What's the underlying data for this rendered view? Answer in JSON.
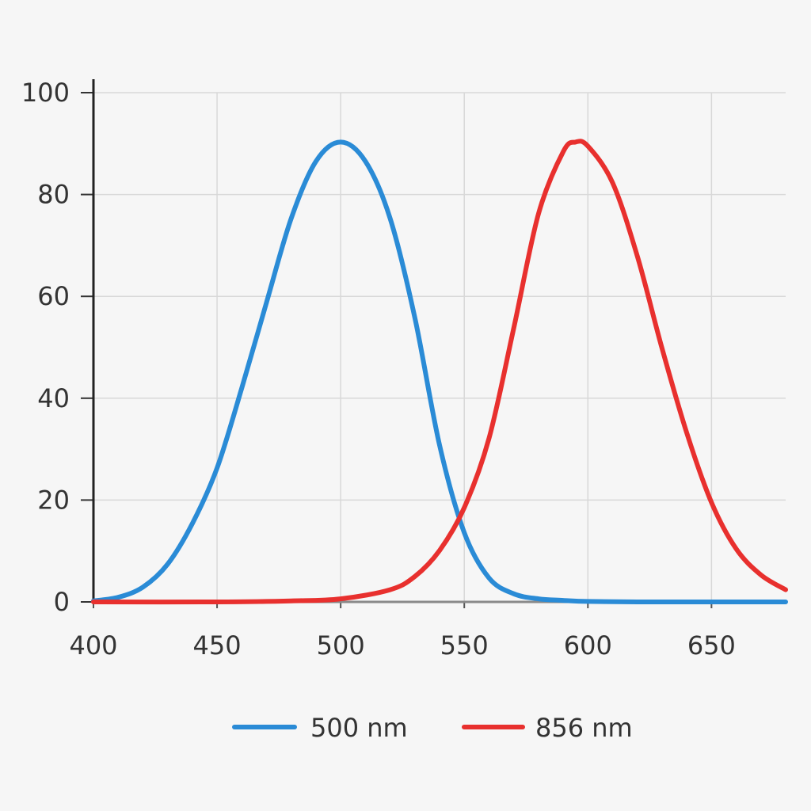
{
  "chart_data": {
    "type": "line",
    "title": "",
    "xlabel": "",
    "ylabel": "",
    "xlim": [
      400,
      680
    ],
    "ylim": [
      0,
      100
    ],
    "x_ticks": [
      400,
      450,
      500,
      550,
      600,
      650
    ],
    "y_ticks": [
      0,
      20,
      40,
      60,
      80,
      100
    ],
    "grid": true,
    "legend_position": "bottom",
    "series": [
      {
        "name": "500 nm",
        "color": "#2a8bd6",
        "x": [
          400,
          410,
          420,
          430,
          440,
          450,
          460,
          470,
          480,
          490,
          500,
          510,
          520,
          530,
          540,
          550,
          560,
          570,
          580,
          590,
          600,
          620,
          650,
          680
        ],
        "y": [
          0.2,
          0.9,
          2.9,
          7.4,
          15.4,
          26.3,
          42,
          58.8,
          75.3,
          86.5,
          90.3,
          86.5,
          75.3,
          55.8,
          30.8,
          13.6,
          4.7,
          1.6,
          0.6,
          0.3,
          0.1,
          0,
          0,
          0
        ]
      },
      {
        "name": "856 nm",
        "color": "#e8302e",
        "x": [
          400,
          450,
          480,
          500,
          520,
          530,
          540,
          550,
          560,
          570,
          580,
          590,
          595,
          600,
          610,
          620,
          630,
          640,
          650,
          660,
          670,
          680
        ],
        "y": [
          0,
          0,
          0.2,
          0.6,
          2.4,
          5,
          10.1,
          18.5,
          32.1,
          53.7,
          76.2,
          88.4,
          90.3,
          89.5,
          82.3,
          67.9,
          49.8,
          33.2,
          19.5,
          10.4,
          5.3,
          2.4
        ]
      }
    ]
  }
}
